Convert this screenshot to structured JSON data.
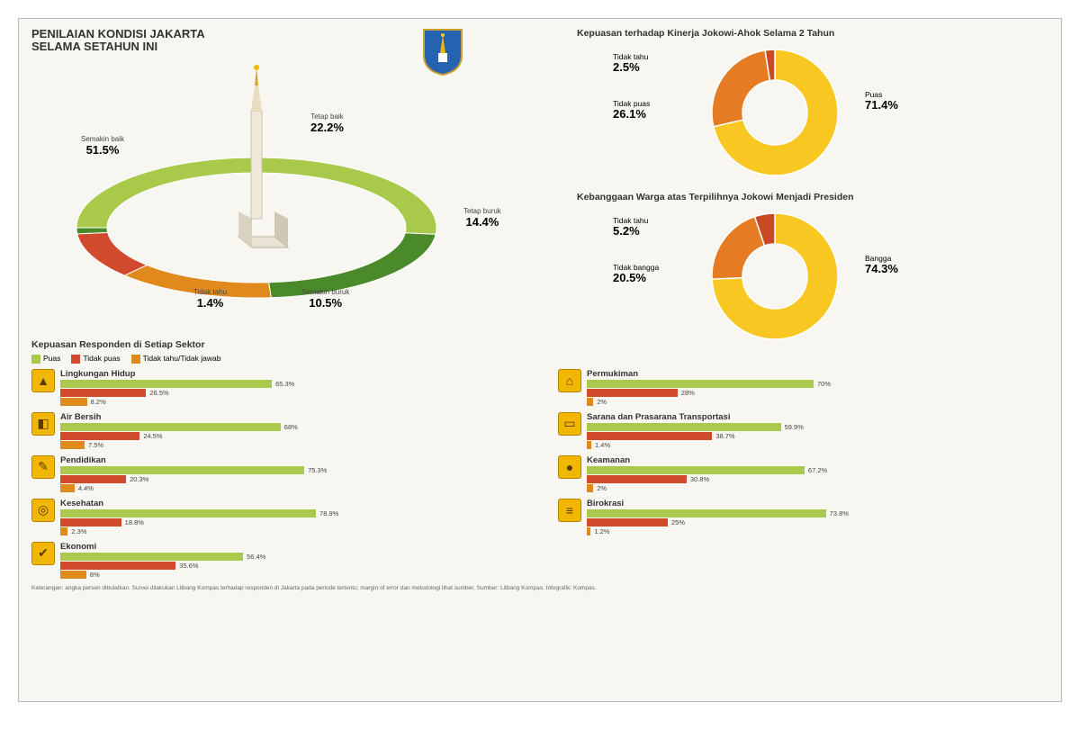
{
  "colors": {
    "bg": "#f7f6f1",
    "green_light": "#a8c94a",
    "green_dark": "#4a8a2a",
    "orange": "#e08a1e",
    "red": "#d24a2e",
    "yellow": "#f2b705",
    "donut_yellow": "#f9c722",
    "donut_orange": "#e57b22",
    "donut_red": "#c94826",
    "text": "#333333",
    "shield_blue": "#2563b0",
    "shield_gold": "#f2b705"
  },
  "main": {
    "title_l1": "PENILAIAN KONDISI JAKARTA",
    "title_l2": "SELAMA SETAHUN INI",
    "ring": {
      "type": "donut",
      "segments": [
        {
          "label": "Semakin baik",
          "value": 51.5,
          "color_key": "green_light"
        },
        {
          "label": "Tetap baik",
          "value": 22.2,
          "color_key": "green_dark"
        },
        {
          "label": "Tetap buruk",
          "value": 14.4,
          "color_key": "orange"
        },
        {
          "label": "Semakin buruk",
          "value": 10.5,
          "color_key": "red"
        },
        {
          "label": "Tidak tahu",
          "value": 1.4,
          "color_key": "green_dark"
        }
      ]
    }
  },
  "donuts": [
    {
      "title": "Kepuasan terhadap Kinerja Jokowi-Ahok Selama 2 Tahun",
      "segments": [
        {
          "label": "Puas",
          "value": 71.4,
          "color_key": "donut_yellow"
        },
        {
          "label": "Tidak puas",
          "value": 26.1,
          "color_key": "donut_orange"
        },
        {
          "label": "Tidak tahu",
          "value": 2.5,
          "color_key": "donut_red"
        }
      ]
    },
    {
      "title": "Kebanggaan Warga atas Terpilihnya Jokowi Menjadi Presiden",
      "segments": [
        {
          "label": "Bangga",
          "value": 74.3,
          "color_key": "donut_yellow"
        },
        {
          "label": "Tidak bangga",
          "value": 20.5,
          "color_key": "donut_orange"
        },
        {
          "label": "Tidak tahu",
          "value": 5.2,
          "color_key": "donut_red"
        }
      ]
    }
  ],
  "sectors": {
    "title": "Kepuasan Responden di Setiap Sektor",
    "legend": [
      {
        "label": "Puas",
        "color_key": "green_light"
      },
      {
        "label": "Tidak puas",
        "color_key": "red"
      },
      {
        "label": "Tidak tahu/Tidak jawab",
        "color_key": "orange"
      }
    ],
    "items": [
      {
        "name": "Lingkungan Hidup",
        "icon": "▲",
        "values": [
          65.3,
          26.5,
          8.2
        ]
      },
      {
        "name": "Air Bersih",
        "icon": "◧",
        "values": [
          68.0,
          24.5,
          7.5
        ]
      },
      {
        "name": "Pendidikan",
        "icon": "✎",
        "values": [
          75.3,
          20.3,
          4.4
        ]
      },
      {
        "name": "Kesehatan",
        "icon": "◎",
        "values": [
          78.9,
          18.8,
          2.3
        ]
      },
      {
        "name": "Ekonomi",
        "icon": "✔",
        "values": [
          56.4,
          35.6,
          8.0
        ]
      },
      {
        "name": "Permukiman",
        "icon": "⌂",
        "values": [
          70.0,
          28.0,
          2.0
        ]
      },
      {
        "name": "Sarana dan Prasarana Transportasi",
        "icon": "▭",
        "values": [
          59.9,
          38.7,
          1.4
        ]
      },
      {
        "name": "Keamanan",
        "icon": "●",
        "values": [
          67.2,
          30.8,
          2.0
        ]
      },
      {
        "name": "Birokrasi",
        "icon": "≡",
        "values": [
          73.8,
          25.0,
          1.2
        ]
      }
    ],
    "bar_max_width": 360
  },
  "footnote": "Keterangan: angka persen dibulatkan. Survei dilakukan Litbang Kompas terhadap responden di Jakarta pada periode tertentu; margin of error dan metodologi lihat sumber. Sumber: Litbang Kompas. Infografik: Kompas.",
  "source_label": "Sumber: Litbang Kompas"
}
